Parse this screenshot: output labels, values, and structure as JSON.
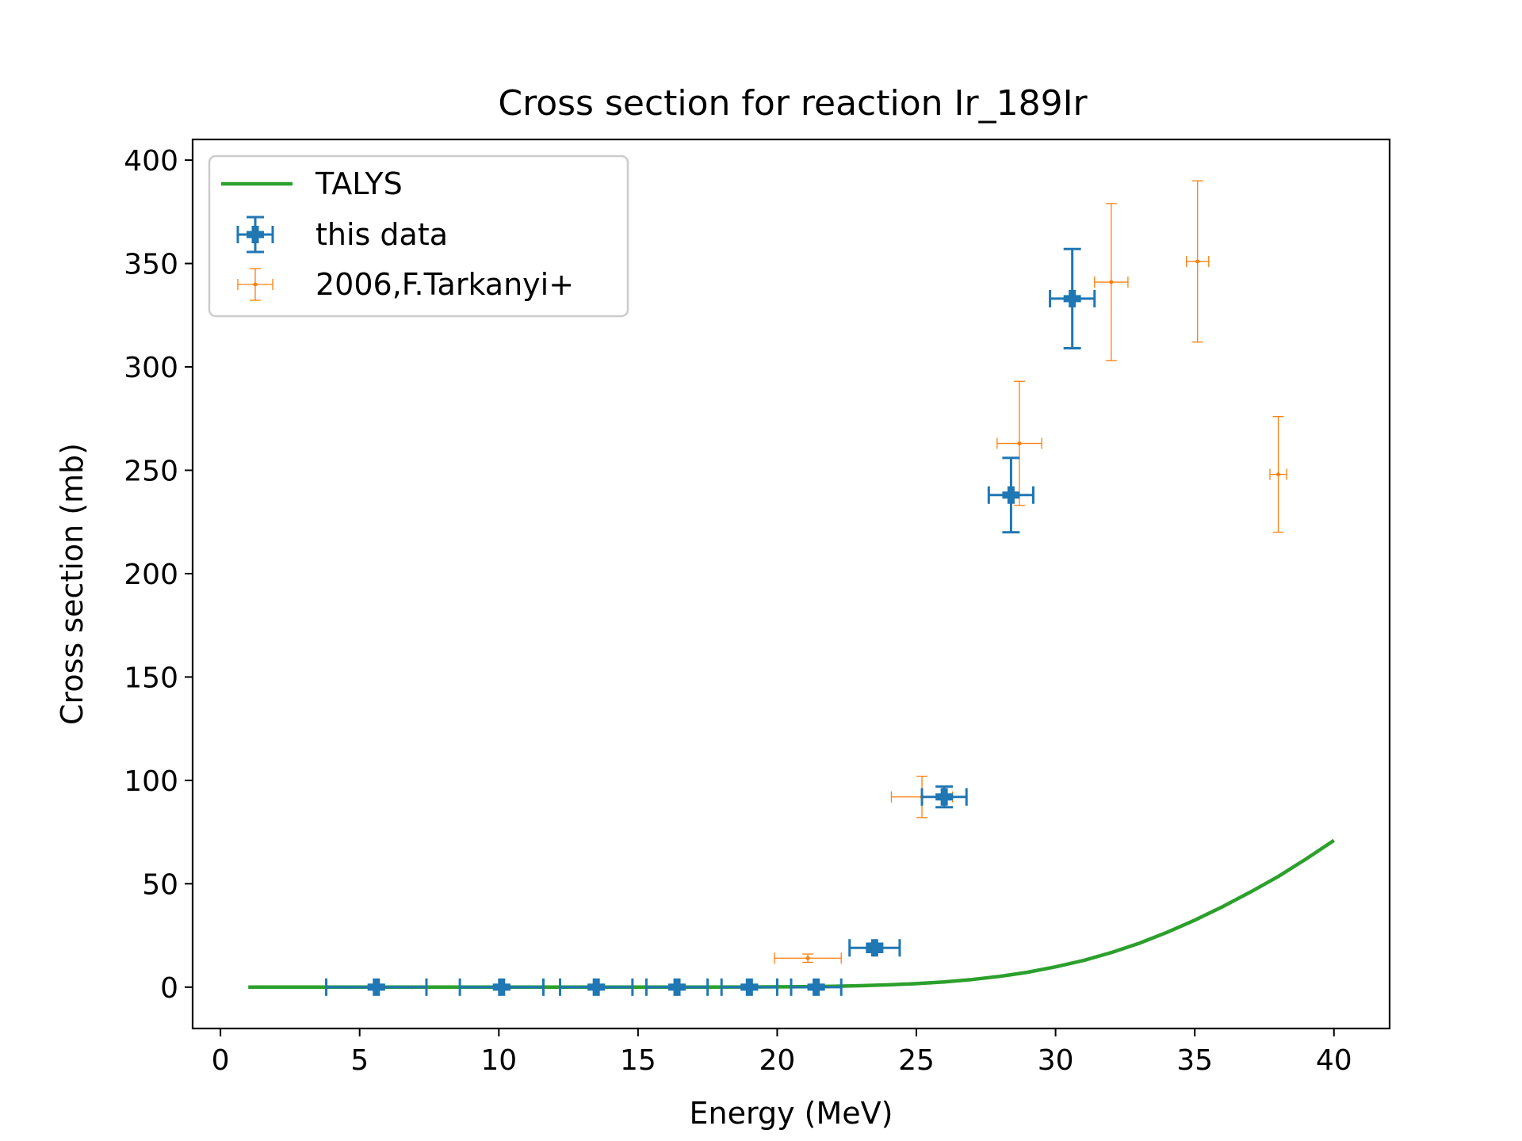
{
  "chart_data": {
    "type": "scatter",
    "title": "Cross section for reaction Ir_189Ir",
    "xlabel": "Energy (MeV)",
    "ylabel": "Cross section (mb)",
    "xlim": [
      -1,
      42
    ],
    "ylim": [
      -20,
      410
    ],
    "xticks": [
      0,
      5,
      10,
      15,
      20,
      25,
      30,
      35,
      40
    ],
    "yticks": [
      0,
      50,
      100,
      150,
      200,
      250,
      300,
      350,
      400
    ],
    "grid": false,
    "legend_position": "top-left",
    "series": [
      {
        "name": "TALYS",
        "kind": "line",
        "color": "#2ca02c",
        "x": [
          1,
          3,
          5,
          7,
          9,
          11,
          13,
          15,
          17,
          19,
          21,
          22,
          23,
          24,
          25,
          26,
          27,
          28,
          29,
          30,
          31,
          32,
          33,
          34,
          35,
          36,
          37,
          38,
          39,
          40
        ],
        "y": [
          0,
          0,
          0,
          0,
          0,
          0,
          0,
          0,
          0,
          0.1,
          0.2,
          0.4,
          0.7,
          1.1,
          1.7,
          2.5,
          3.7,
          5.2,
          7.2,
          9.8,
          12.9,
          16.7,
          21.2,
          26.5,
          32.4,
          38.9,
          46,
          53.5,
          62,
          71
        ]
      },
      {
        "name": "this data",
        "kind": "errorbar",
        "color": "#1f77b4",
        "points": [
          {
            "x": 5.6,
            "y": 0,
            "xerr": 1.8,
            "yerr": 1
          },
          {
            "x": 10.1,
            "y": 0,
            "xerr": 1.5,
            "yerr": 1
          },
          {
            "x": 13.5,
            "y": 0,
            "xerr": 1.3,
            "yerr": 1
          },
          {
            "x": 16.4,
            "y": 0,
            "xerr": 1.1,
            "yerr": 1
          },
          {
            "x": 19.0,
            "y": 0,
            "xerr": 1.0,
            "yerr": 1
          },
          {
            "x": 21.4,
            "y": 0,
            "xerr": 0.9,
            "yerr": 1
          },
          {
            "x": 23.5,
            "y": 19,
            "xerr": 0.9,
            "yerr": 2
          },
          {
            "x": 26.0,
            "y": 92,
            "xerr": 0.8,
            "yerr": 5
          },
          {
            "x": 28.4,
            "y": 238,
            "xerr": 0.8,
            "yerr": 18
          },
          {
            "x": 30.6,
            "y": 333,
            "xerr": 0.8,
            "yerr": 24
          }
        ]
      },
      {
        "name": "2006,F.Tarkanyi+",
        "kind": "errorbar",
        "color": "#ff7f0e",
        "points": [
          {
            "x": 6.9,
            "y": 0,
            "xerr": 0,
            "yerr": 0
          },
          {
            "x": 21.1,
            "y": 14,
            "xerr": 1.2,
            "yerr": 2
          },
          {
            "x": 25.2,
            "y": 92,
            "xerr": 1.1,
            "yerr": 10
          },
          {
            "x": 28.7,
            "y": 263,
            "xerr": 0.8,
            "yerr": 30
          },
          {
            "x": 32.0,
            "y": 341,
            "xerr": 0.6,
            "yerr": 38
          },
          {
            "x": 35.1,
            "y": 351,
            "xerr": 0.4,
            "yerr": 39
          },
          {
            "x": 38.0,
            "y": 248,
            "xerr": 0.3,
            "yerr": 28
          }
        ]
      }
    ]
  }
}
